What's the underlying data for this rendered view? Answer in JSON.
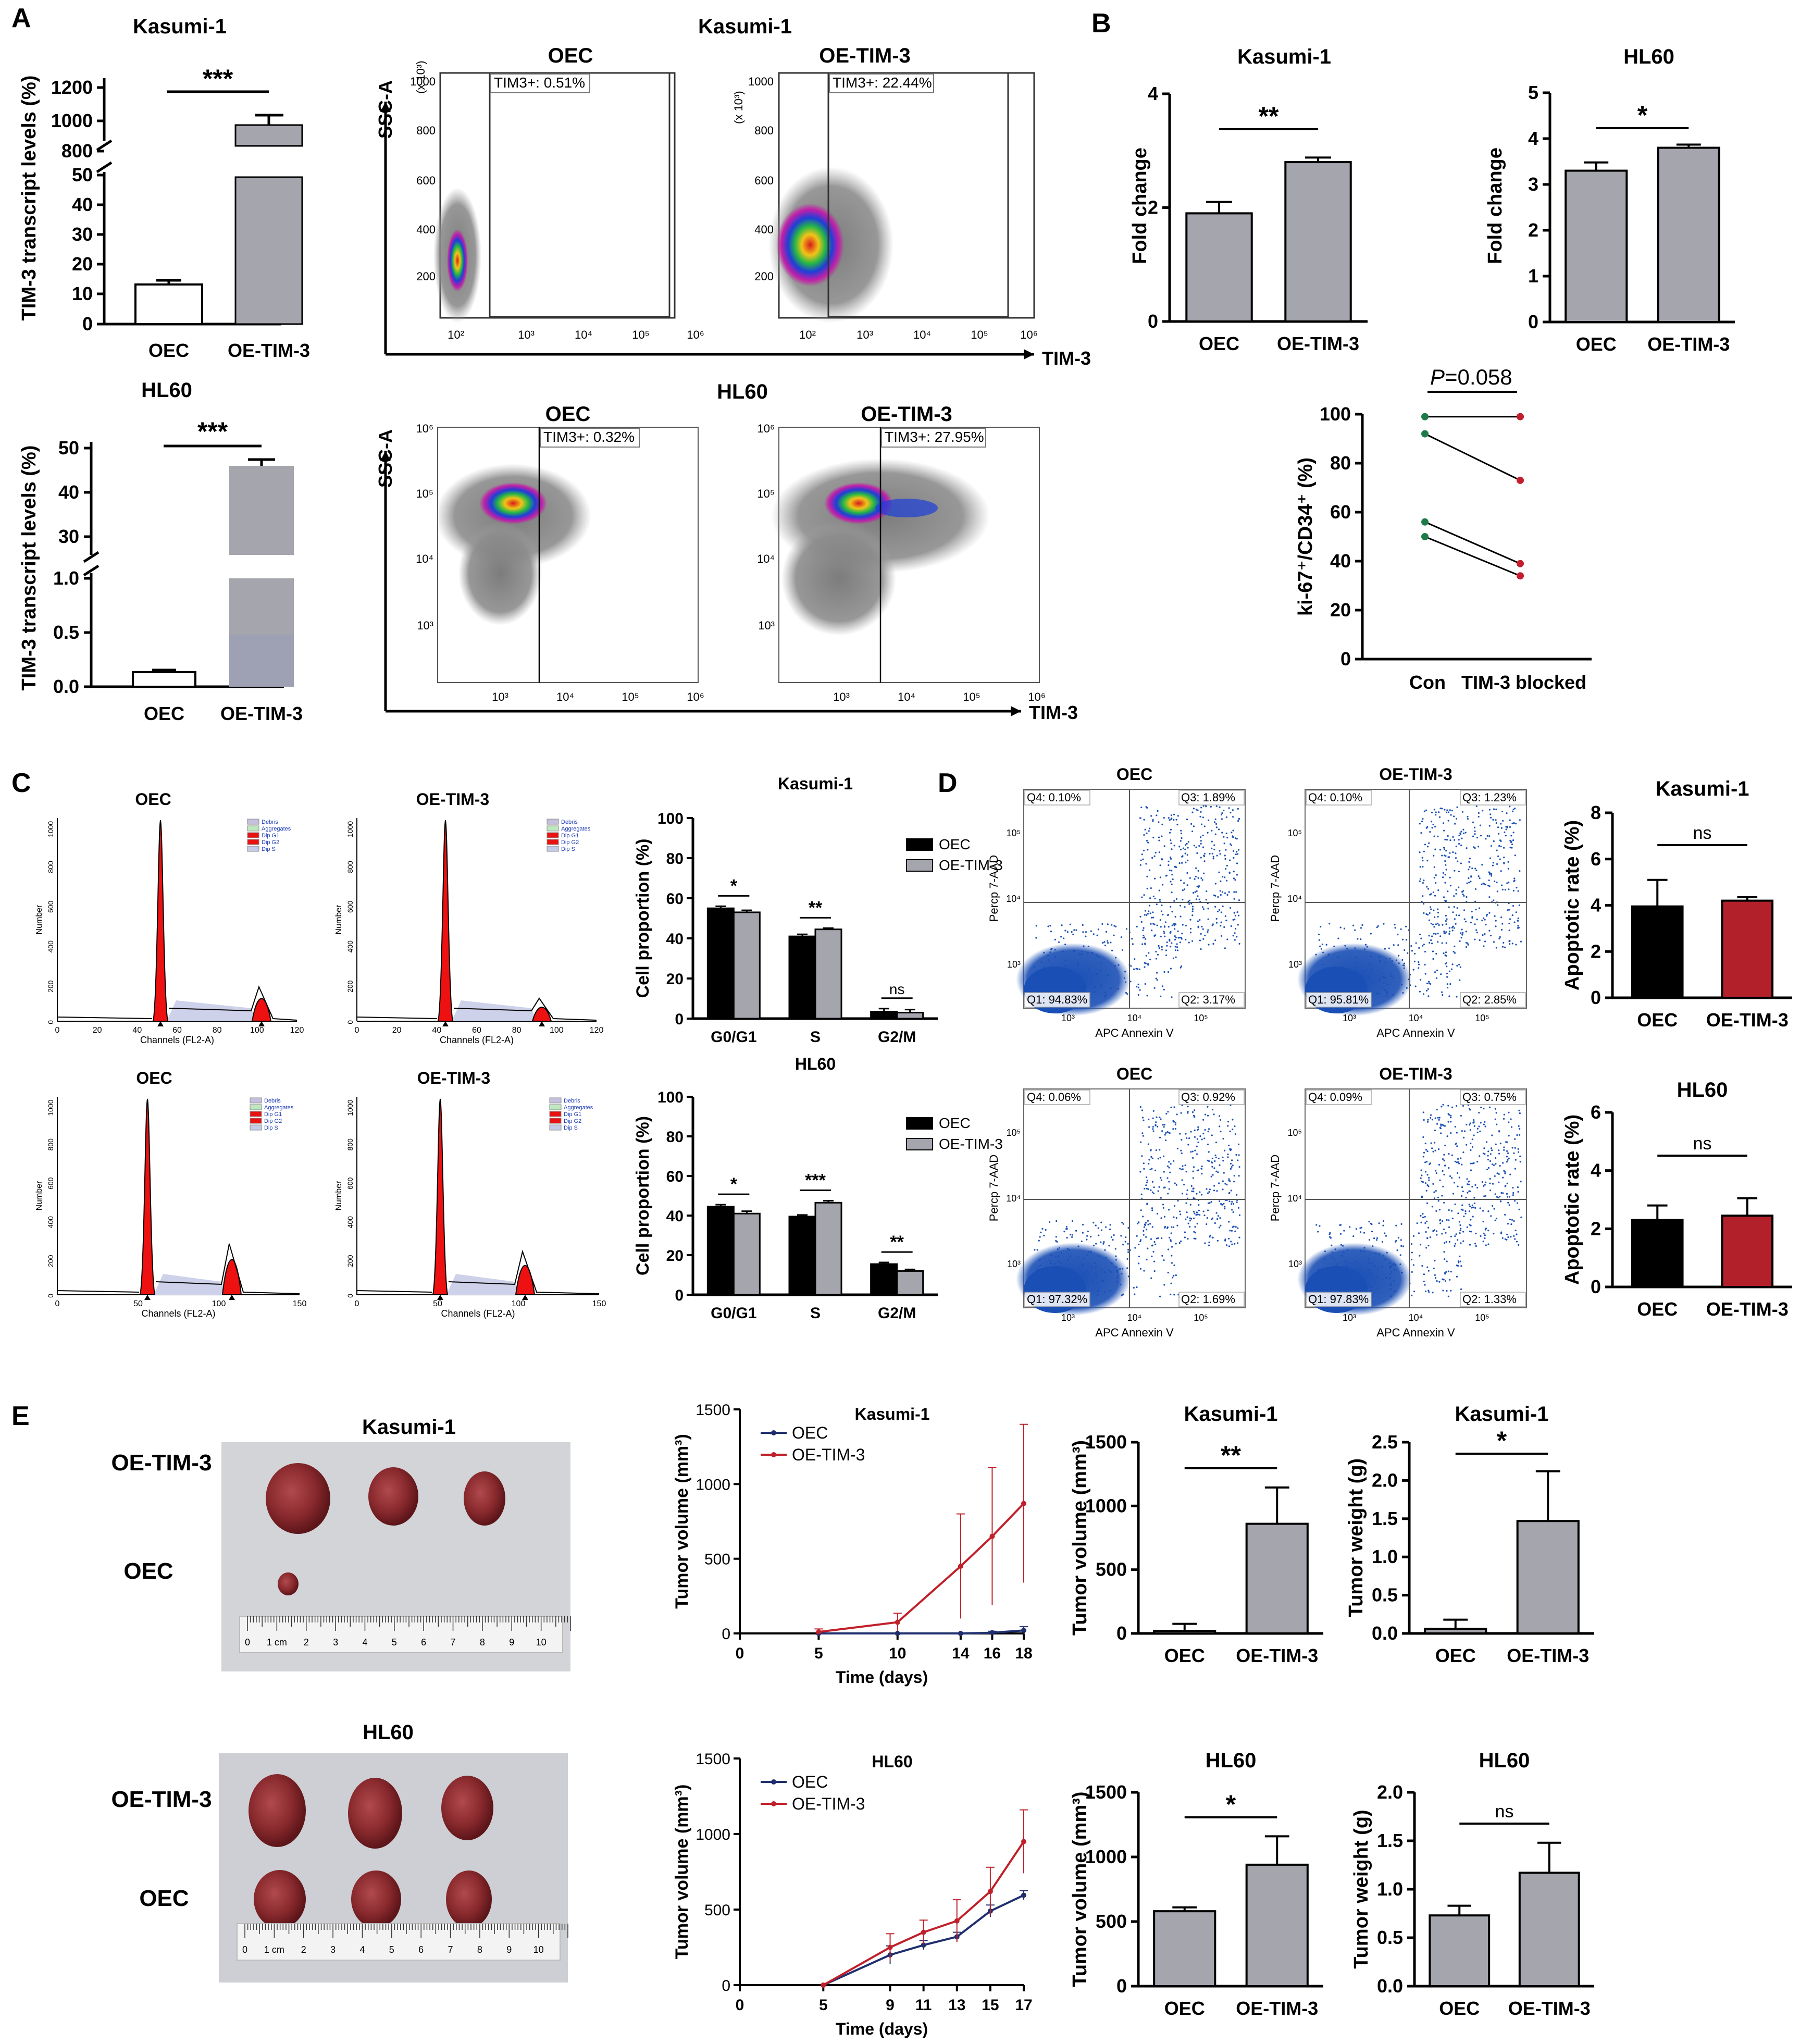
{
  "panels": [
    "A",
    "B",
    "C",
    "D",
    "E"
  ],
  "chart_data": [
    {
      "id": "A1",
      "type": "bar",
      "title": "Kasumi-1",
      "ylabel": "TIM-3 transcript levels (%)",
      "categories": [
        "OEC",
        "OE-TIM-3"
      ],
      "values": [
        14,
        980
      ],
      "errors": [
        1,
        55
      ],
      "yticks_lower": [
        "0",
        "10",
        "20",
        "30",
        "40",
        "50"
      ],
      "yticks_upper": [
        "800",
        "1000",
        "1200"
      ],
      "significance": "***"
    },
    {
      "id": "A2",
      "type": "bar",
      "title": "HL60",
      "ylabel": "TIM-3 transcript levels (%)",
      "categories": [
        "OEC",
        "OE-TIM-3"
      ],
      "values": [
        0.13,
        46
      ],
      "errors": [
        0.01,
        1.3
      ],
      "yticks_lower": [
        "0.0",
        "0.5",
        "1.0"
      ],
      "yticks_upper": [
        "30",
        "40",
        "50"
      ],
      "significance": "***"
    },
    {
      "id": "A3",
      "type": "scatter",
      "title": "Kasumi-1",
      "ylabel": "SSC-A",
      "xlabel": "TIM-3",
      "samples": [
        {
          "name": "OEC",
          "gate": "TIM3+: 0.51%"
        },
        {
          "name": "OE-TIM-3",
          "gate": "TIM3+: 22.44%"
        }
      ],
      "yticks": [
        "200",
        "400",
        "600",
        "800",
        "1000"
      ],
      "ymult": "(x 10³)",
      "xticks": [
        "10²",
        "10³",
        "10⁴",
        "10⁵",
        "10⁶"
      ]
    },
    {
      "id": "A4",
      "type": "scatter",
      "title": "HL60",
      "ylabel": "SSC-A",
      "xlabel": "TIM-3",
      "samples": [
        {
          "name": "OEC",
          "gate": "TIM3+: 0.32%"
        },
        {
          "name": "OE-TIM-3",
          "gate": "TIM3+: 27.95%"
        }
      ],
      "yticks": [
        "10³",
        "10⁴",
        "10⁵",
        "10⁶"
      ],
      "xticks": [
        "10³",
        "10⁴",
        "10⁵",
        "10⁶"
      ]
    },
    {
      "id": "B1",
      "type": "bar",
      "title": "Kasumi-1",
      "ylabel": "Fold change",
      "categories": [
        "OEC",
        "OE-TIM-3"
      ],
      "values": [
        1.9,
        2.8
      ],
      "errors": [
        0.2,
        0.08
      ],
      "ylim": [
        0,
        4
      ],
      "yticks": [
        "0",
        "2",
        "4"
      ],
      "significance": "**"
    },
    {
      "id": "B2",
      "type": "bar",
      "title": "HL60",
      "ylabel": "Fold change",
      "categories": [
        "OEC",
        "OE-TIM-3"
      ],
      "values": [
        3.3,
        3.8
      ],
      "errors": [
        0.18,
        0.07
      ],
      "ylim": [
        0,
        5
      ],
      "yticks": [
        "0",
        "1",
        "2",
        "3",
        "4",
        "5"
      ],
      "significance": "*"
    },
    {
      "id": "B3",
      "type": "line",
      "title": "",
      "ylabel": "ki-67⁺/CD34⁺ (%)",
      "categories": [
        "Con",
        "TIM-3 blocked"
      ],
      "pairs": [
        [
          99,
          99
        ],
        [
          92,
          73
        ],
        [
          56,
          39
        ],
        [
          50,
          34
        ]
      ],
      "ylim": [
        0,
        100
      ],
      "yticks": [
        "0",
        "20",
        "40",
        "60",
        "80",
        "100"
      ],
      "p_label": "P",
      "p_value": "=0.058"
    },
    {
      "id": "C1",
      "type": "area",
      "title": "OEC",
      "legend": [
        "Debris",
        "Aggregates",
        "Dip G1",
        "Dip G2",
        "Dip S"
      ],
      "xlabel": "Channels (FL2-A)",
      "xticks": [
        "0",
        "20",
        "40",
        "60",
        "80",
        "100",
        "120"
      ],
      "yticks": [
        "0",
        "200",
        "400",
        "600",
        "800",
        "1000"
      ],
      "ylabel": "Number"
    },
    {
      "id": "C2",
      "type": "area",
      "title": "OE-TIM-3",
      "legend": [
        "Debris",
        "Aggregates",
        "Dip G1",
        "Dip G2",
        "Dip S"
      ],
      "xlabel": "Channels (FL2-A)",
      "xticks": [
        "0",
        "20",
        "40",
        "60",
        "80",
        "100",
        "120"
      ],
      "yticks": [
        "0",
        "200",
        "400",
        "600",
        "800",
        "1000"
      ],
      "ylabel": "Number"
    },
    {
      "id": "C3",
      "type": "area",
      "title": "OEC",
      "legend": [
        "Debris",
        "Aggregates",
        "Dip G1",
        "Dip G2",
        "Dip S"
      ],
      "xlabel": "Channels (FL2-A)",
      "xticks": [
        "0",
        "50",
        "100",
        "150"
      ],
      "yticks": [
        "0",
        "200",
        "400",
        "600",
        "800",
        "1000"
      ],
      "ylabel": "Number"
    },
    {
      "id": "C4",
      "type": "area",
      "title": "OE-TIM-3",
      "legend": [
        "Debris",
        "Aggregates",
        "Dip G1",
        "Dip G2",
        "Dip S"
      ],
      "xlabel": "Channels (FL2-A)",
      "xticks": [
        "0",
        "50",
        "100",
        "150"
      ],
      "yticks": [
        "0",
        "200",
        "400",
        "600",
        "800",
        "1000"
      ],
      "ylabel": "Number"
    },
    {
      "id": "C5",
      "type": "bar",
      "title": "Kasumi-1",
      "ylabel": "Cell proportion (%)",
      "categories": [
        "G0/G1",
        "S",
        "G2/M"
      ],
      "series": [
        {
          "name": "OEC",
          "values": [
            55,
            41,
            3.5
          ],
          "errors": [
            1,
            1,
            1.5
          ]
        },
        {
          "name": "OE-TIM-3",
          "values": [
            53,
            44.5,
            3
          ],
          "errors": [
            1,
            0.6,
            1.5
          ]
        }
      ],
      "ylim": [
        0,
        100
      ],
      "yticks": [
        "0",
        "20",
        "40",
        "60",
        "80",
        "100"
      ],
      "significance": [
        "*",
        "**",
        "ns"
      ]
    },
    {
      "id": "C6",
      "type": "bar",
      "title": "HL60",
      "ylabel": "Cell proportion (%)",
      "categories": [
        "G0/G1",
        "S",
        "G2/M"
      ],
      "series": [
        {
          "name": "OEC",
          "values": [
            44.5,
            39.5,
            15.5
          ],
          "errors": [
            1,
            0.8,
            0.8
          ]
        },
        {
          "name": "OE-TIM-3",
          "values": [
            41,
            46.5,
            12
          ],
          "errors": [
            1.2,
            1,
            0.8
          ]
        }
      ],
      "ylim": [
        0,
        100
      ],
      "yticks": [
        "0",
        "20",
        "40",
        "60",
        "80",
        "100"
      ],
      "significance": [
        "*",
        "***",
        "**"
      ]
    },
    {
      "id": "D1",
      "type": "scatter",
      "title": "OEC",
      "xlabel": "APC Annexin V",
      "ylabel": "Percp 7-AAD",
      "quadrants": [
        "Q4: 0.10%",
        "Q3: 1.89%",
        "Q1: 94.83%",
        "Q2: 3.17%"
      ],
      "xticks": [
        "10³",
        "10⁴",
        "10⁵"
      ],
      "yticks": [
        "10³",
        "10⁴",
        "10⁵"
      ]
    },
    {
      "id": "D2",
      "type": "scatter",
      "title": "OE-TIM-3",
      "xlabel": "APC Annexin V",
      "ylabel": "Percp 7-AAD",
      "quadrants": [
        "Q4: 0.10%",
        "Q3: 1.23%",
        "Q1: 95.81%",
        "Q2: 2.85%"
      ],
      "xticks": [
        "10³",
        "10⁴",
        "10⁵"
      ],
      "yticks": [
        "10³",
        "10⁴",
        "10⁵"
      ]
    },
    {
      "id": "D3",
      "type": "scatter",
      "title": "OEC",
      "xlabel": "APC Annexin V",
      "ylabel": "Percp 7-AAD",
      "quadrants": [
        "Q4: 0.06%",
        "Q3: 0.92%",
        "Q1: 97.32%",
        "Q2: 1.69%"
      ],
      "xticks": [
        "10³",
        "10⁴",
        "10⁵"
      ],
      "yticks": [
        "10³",
        "10⁴",
        "10⁵"
      ]
    },
    {
      "id": "D4",
      "type": "scatter",
      "title": "OE-TIM-3",
      "xlabel": "APC Annexin V",
      "ylabel": "Percp 7-AAD",
      "quadrants": [
        "Q4: 0.09%",
        "Q3: 0.75%",
        "Q1: 97.83%",
        "Q2: 1.33%"
      ],
      "xticks": [
        "10³",
        "10⁴",
        "10⁵"
      ],
      "yticks": [
        "10³",
        "10⁴",
        "10⁵"
      ]
    },
    {
      "id": "D5",
      "type": "bar",
      "title": "Kasumi-1",
      "ylabel": "Apoptotic rate (%)",
      "categories": [
        "OEC",
        "OE-TIM-3"
      ],
      "values": [
        3.95,
        4.2
      ],
      "errors": [
        1.15,
        0.15
      ],
      "ylim": [
        0,
        8
      ],
      "yticks": [
        "0",
        "2",
        "4",
        "6",
        "8"
      ],
      "significance": "ns"
    },
    {
      "id": "D6",
      "type": "bar",
      "title": "HL60",
      "ylabel": "Apoptotic rate (%)",
      "categories": [
        "OEC",
        "OE-TIM-3"
      ],
      "values": [
        2.3,
        2.45
      ],
      "errors": [
        0.5,
        0.6
      ],
      "ylim": [
        0,
        6
      ],
      "yticks": [
        "0",
        "2",
        "4",
        "6"
      ],
      "significance": "ns"
    },
    {
      "id": "E1",
      "type": "line",
      "title": "Kasumi-1",
      "xlabel": "Time (days)",
      "ylabel": "Tumor volume  (mm³)",
      "x": [
        5,
        10,
        14,
        16,
        18
      ],
      "xlim": [
        0,
        18
      ],
      "ylim": [
        0,
        1500
      ],
      "xticks": [
        "0",
        "5",
        "10",
        "14",
        "16",
        "18"
      ],
      "yticks": [
        "0",
        "500",
        "1000",
        "1500"
      ],
      "series": [
        {
          "name": "OEC",
          "values": [
            0,
            0,
            0,
            5,
            20
          ],
          "errors": [
            0,
            0,
            0,
            10,
            25
          ]
        },
        {
          "name": "OE-TIM-3",
          "values": [
            10,
            75,
            450,
            650,
            870
          ],
          "errors": [
            20,
            60,
            350,
            460,
            530
          ]
        }
      ]
    },
    {
      "id": "E2",
      "type": "bar",
      "title": "Kasumi-1",
      "ylabel": "Tumor volume (mm³)",
      "categories": [
        "OEC",
        "OE-TIM-3"
      ],
      "values": [
        20,
        860
      ],
      "errors": [
        55,
        285
      ],
      "ylim": [
        0,
        1500
      ],
      "yticks": [
        "0",
        "500",
        "1000",
        "1500"
      ],
      "significance": "**"
    },
    {
      "id": "E3",
      "type": "bar",
      "title": "Kasumi-1",
      "ylabel": "Tumor weight (g)",
      "categories": [
        "OEC",
        "OE-TIM-3"
      ],
      "values": [
        0.06,
        1.47
      ],
      "errors": [
        0.12,
        0.65
      ],
      "ylim": [
        0,
        2.5
      ],
      "yticks": [
        "0.0",
        "0.5",
        "1.0",
        "1.5",
        "2.0",
        "2.5"
      ],
      "significance": "*"
    },
    {
      "id": "E4",
      "type": "line",
      "title": "HL60",
      "xlabel": "Time (days)",
      "ylabel": "Tumor volume  (mm³)",
      "x": [
        5,
        9,
        11,
        13,
        15,
        17
      ],
      "xlim": [
        0,
        17
      ],
      "ylim": [
        0,
        1500
      ],
      "xticks": [
        "0",
        "5",
        "9",
        "11",
        "13",
        "15",
        "17"
      ],
      "yticks": [
        "0",
        "500",
        "1000",
        "1500"
      ],
      "series": [
        {
          "name": "OEC",
          "values": [
            0,
            200,
            265,
            320,
            490,
            595
          ],
          "errors": [
            0,
            60,
            30,
            30,
            40,
            30
          ]
        },
        {
          "name": "OE-TIM-3",
          "values": [
            0,
            250,
            350,
            425,
            620,
            950
          ],
          "errors": [
            0,
            90,
            80,
            140,
            160,
            210
          ]
        }
      ]
    },
    {
      "id": "E5",
      "type": "bar",
      "title": "HL60",
      "ylabel": "Tumor volume (mm³)",
      "categories": [
        "OEC",
        "OE-TIM-3"
      ],
      "values": [
        580,
        940
      ],
      "errors": [
        30,
        220
      ],
      "ylim": [
        0,
        1500
      ],
      "yticks": [
        "0",
        "500",
        "1000",
        "1500"
      ],
      "significance": "*"
    },
    {
      "id": "E6",
      "type": "bar",
      "title": "HL60",
      "ylabel": "Tumor weight (g)",
      "categories": [
        "OEC",
        "OE-TIM-3"
      ],
      "values": [
        0.73,
        1.17
      ],
      "errors": [
        0.1,
        0.31
      ],
      "ylim": [
        0,
        2.0
      ],
      "yticks": [
        "0.0",
        "0.5",
        "1.0",
        "1.5",
        "2.0"
      ],
      "significance": "ns"
    }
  ],
  "photos": [
    {
      "title": "Kasumi-1",
      "rows": [
        "OE-TIM-3",
        "OEC"
      ],
      "ruler": [
        "0",
        "1 cm",
        "2",
        "3",
        "4",
        "5",
        "6",
        "7",
        "8",
        "9",
        "10"
      ]
    },
    {
      "title": "HL60",
      "rows": [
        "OE-TIM-3",
        "OEC"
      ],
      "ruler": [
        "0",
        "1 cm",
        "2",
        "3",
        "4",
        "5",
        "6",
        "7",
        "8",
        "9",
        "10"
      ]
    }
  ],
  "colors": {
    "gray_bar": "#a5a5ae",
    "black": "#000000",
    "red_bar": "#b2202a",
    "red_line": "#c0202a",
    "navy_line": "#1f2f6e",
    "green_dot": "#1f7a4a",
    "red_dot": "#c41d2e",
    "flow_gray": "#8c8c8c",
    "cell_blue": "#1a4fb5",
    "hist_red": "#ee1111"
  }
}
